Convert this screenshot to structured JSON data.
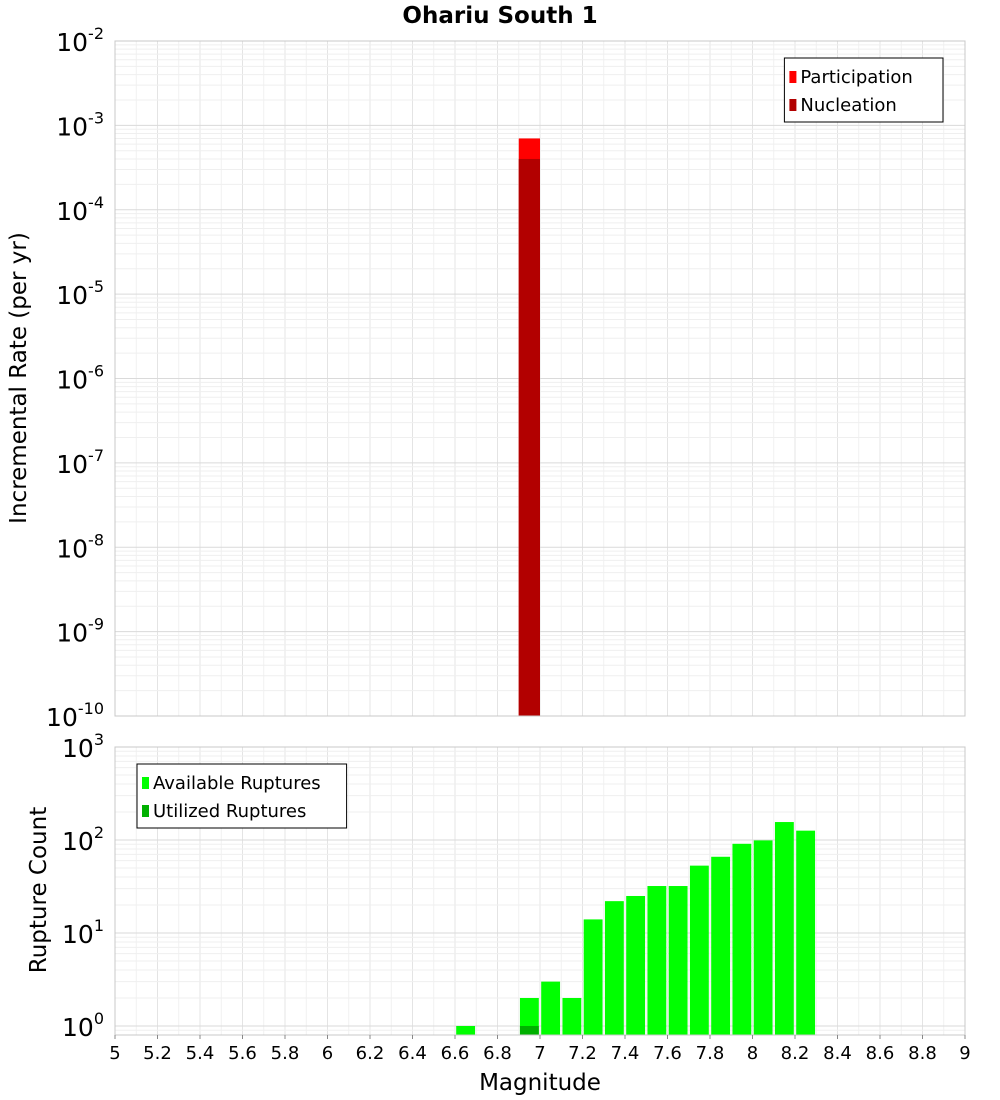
{
  "chart_data": [
    {
      "type": "bar",
      "title": "Ohariu South 1",
      "ylabel": "Incremental Rate (per yr)",
      "xlabel": "",
      "xlim": [
        5,
        9
      ],
      "ylim": [
        1e-10,
        0.01
      ],
      "yscale": "log",
      "y_ticks": [
        {
          "base": "10",
          "exp": "-10"
        },
        {
          "base": "10",
          "exp": "-9"
        },
        {
          "base": "10",
          "exp": "-8"
        },
        {
          "base": "10",
          "exp": "-7"
        },
        {
          "base": "10",
          "exp": "-6"
        },
        {
          "base": "10",
          "exp": "-5"
        },
        {
          "base": "10",
          "exp": "-4"
        },
        {
          "base": "10",
          "exp": "-3"
        },
        {
          "base": "10",
          "exp": "-2"
        }
      ],
      "bin_width": 0.1,
      "legend": [
        "Participation",
        "Nucleation"
      ],
      "legend_position": "top-right",
      "series": [
        {
          "name": "Participation",
          "color": "#ff0000",
          "x": [
            6.95
          ],
          "values": [
            0.0007
          ]
        },
        {
          "name": "Nucleation",
          "color": "#b20000",
          "x": [
            6.95
          ],
          "values": [
            0.0004
          ]
        }
      ]
    },
    {
      "type": "bar",
      "title": "",
      "ylabel": "Rupture Count",
      "xlabel": "Magnitude",
      "xlim": [
        5,
        9
      ],
      "ylim": [
        0.8,
        1000
      ],
      "yscale": "log",
      "y_ticks": [
        {
          "base": "10",
          "exp": "0"
        },
        {
          "base": "10",
          "exp": "1"
        },
        {
          "base": "10",
          "exp": "2"
        },
        {
          "base": "10",
          "exp": "3"
        }
      ],
      "x_ticks": [
        "5",
        "5.2",
        "5.4",
        "5.6",
        "5.8",
        "6",
        "6.2",
        "6.4",
        "6.6",
        "6.8",
        "7",
        "7.2",
        "7.4",
        "7.6",
        "7.8",
        "8",
        "8.2",
        "8.4",
        "8.6",
        "8.8",
        "9"
      ],
      "bin_width": 0.1,
      "legend": [
        "Available Ruptures",
        "Utilized Ruptures"
      ],
      "legend_position": "top-left",
      "series": [
        {
          "name": "Available Ruptures",
          "color": "#00ff00",
          "x": [
            6.65,
            6.95,
            7.05,
            7.15,
            7.25,
            7.35,
            7.45,
            7.55,
            7.65,
            7.75,
            7.85,
            7.95,
            8.05,
            8.15,
            8.25
          ],
          "values": [
            1,
            2,
            3,
            2,
            14,
            22,
            25,
            32,
            32,
            53,
            66,
            91,
            99,
            156,
            126
          ]
        },
        {
          "name": "Utilized Ruptures",
          "color": "#00b000",
          "x": [
            6.95
          ],
          "values": [
            1
          ]
        }
      ]
    }
  ]
}
